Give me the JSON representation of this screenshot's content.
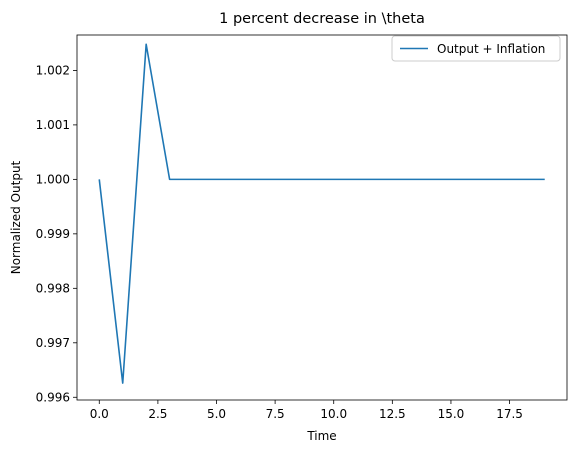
{
  "chart_data": {
    "type": "line",
    "title": "1 percent decrease in \\theta",
    "xlabel": "Time",
    "ylabel": "Normalized Output",
    "xlim": [
      -0.95,
      19.95
    ],
    "ylim": [
      0.99595,
      1.00265
    ],
    "xticks": [
      0,
      2.5,
      5,
      7.5,
      10,
      12.5,
      15,
      17.5
    ],
    "xtick_labels": [
      "0.0",
      "2.5",
      "5.0",
      "7.5",
      "10.0",
      "12.5",
      "15.0",
      "17.5"
    ],
    "yticks": [
      0.996,
      0.997,
      0.998,
      0.999,
      1.0,
      1.001,
      1.002
    ],
    "ytick_labels": [
      "0.996",
      "0.997",
      "0.998",
      "0.999",
      "1.000",
      "1.001",
      "1.002"
    ],
    "grid": false,
    "legend_position": "top-right",
    "series": [
      {
        "name": "Output + Inflation",
        "color": "#1f77b4",
        "x": [
          0,
          1,
          2,
          3,
          4,
          5,
          6,
          7,
          8,
          9,
          10,
          11,
          12,
          13,
          14,
          15,
          16,
          17,
          18,
          19
        ],
        "y": [
          1.0,
          0.99626,
          1.00248,
          1.0,
          1.0,
          1.0,
          1.0,
          1.0,
          1.0,
          1.0,
          1.0,
          1.0,
          1.0,
          1.0,
          1.0,
          1.0,
          1.0,
          1.0,
          1.0,
          1.0
        ]
      }
    ]
  }
}
